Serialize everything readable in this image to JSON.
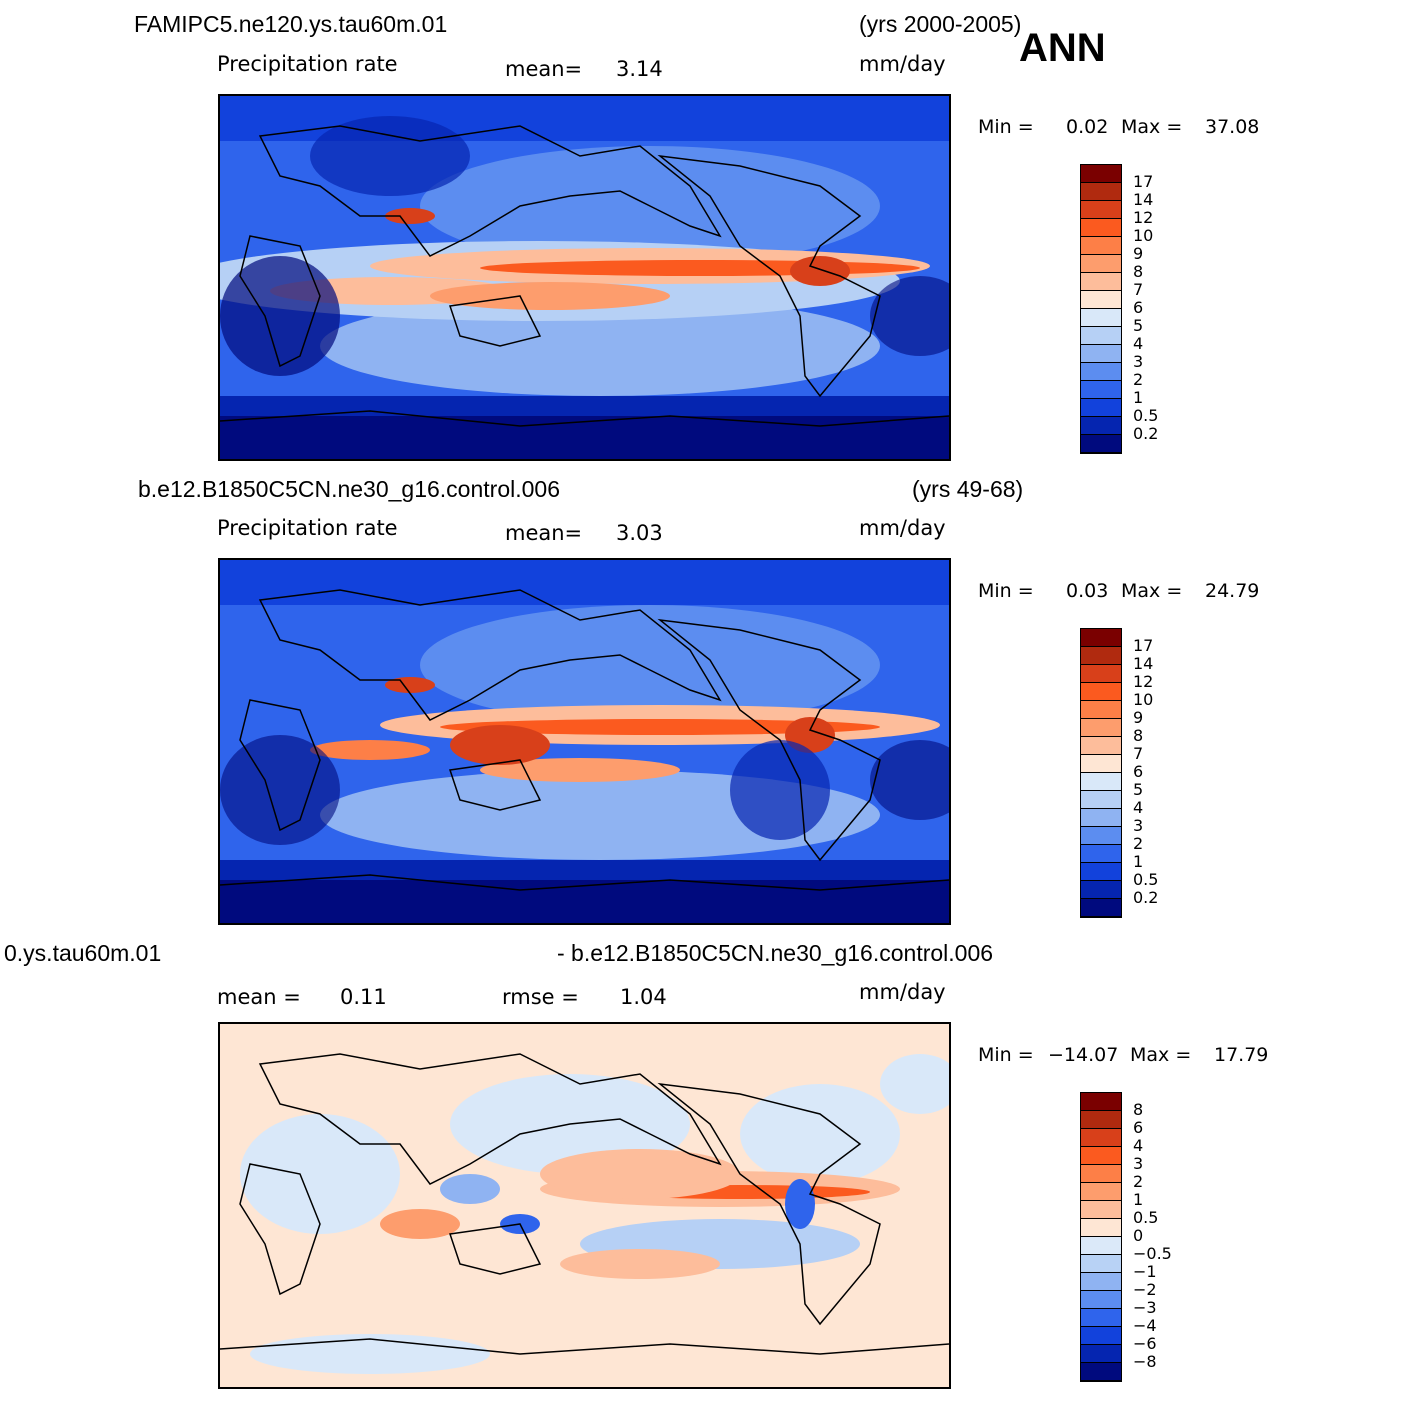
{
  "figure": {
    "season": "ANN"
  },
  "panels": [
    {
      "case_name": "FAMIPC5.ne120.ys.tau60m.01",
      "years": "(yrs 2000-2005)",
      "variable": "Precipitation rate",
      "stat_label": "mean=",
      "stat_value": "3.14",
      "units": "mm/day",
      "min_label": "Min =",
      "min_value": "0.02",
      "max_label": "Max =",
      "max_value": "37.08",
      "colorbar_labels": [
        "17",
        "14",
        "12",
        "10",
        "9",
        "8",
        "7",
        "6",
        "5",
        "4",
        "3",
        "2",
        "1",
        "0.5",
        "0.2"
      ]
    },
    {
      "case_name": "b.e12.B1850C5CN.ne30_g16.control.006",
      "years": "(yrs 49-68)",
      "variable": "Precipitation rate",
      "stat_label": "mean=",
      "stat_value": "3.03",
      "units": "mm/day",
      "min_label": "Min =",
      "min_value": "0.03",
      "max_label": "Max =",
      "max_value": "24.79",
      "colorbar_labels": [
        "17",
        "14",
        "12",
        "10",
        "9",
        "8",
        "7",
        "6",
        "5",
        "4",
        "3",
        "2",
        "1",
        "0.5",
        "0.2"
      ]
    },
    {
      "case_left": "0.ys.tau60m.01",
      "case_right": "- b.e12.B1850C5CN.ne30_g16.control.006",
      "mean_label": "mean =",
      "mean_value": "0.11",
      "rmse_label": "rmse =",
      "rmse_value": "1.04",
      "units": "mm/day",
      "min_label": "Min =",
      "min_value": "−14.07",
      "max_label": "Max =",
      "max_value": "17.79",
      "colorbar_labels": [
        "8",
        "6",
        "4",
        "3",
        "2",
        "1",
        "0.5",
        "0",
        "−0.5",
        "−1",
        "−2",
        "−3",
        "−4",
        "−6",
        "−8"
      ]
    }
  ],
  "colors": {
    "precip_scale": [
      "#7a0000",
      "#b02a0f",
      "#d8401a",
      "#fb5a1f",
      "#fd7f47",
      "#fd9d6d",
      "#fdbd9b",
      "#fee6d4",
      "#d9e8f9",
      "#b6d0f5",
      "#8fb3f2",
      "#5c8df0",
      "#2f64ec",
      "#1242dc",
      "#0525b0",
      "#000a7e"
    ],
    "diff_scale": [
      "#7a0000",
      "#b02a0f",
      "#d8401a",
      "#fb5a1f",
      "#fd7f47",
      "#fd9d6d",
      "#fdbd9b",
      "#fee6d4",
      "#dbe9f9",
      "#b8d2f5",
      "#8fb3f2",
      "#5c8df0",
      "#2f64ec",
      "#1242dc",
      "#0525b0",
      "#000a7e"
    ]
  }
}
